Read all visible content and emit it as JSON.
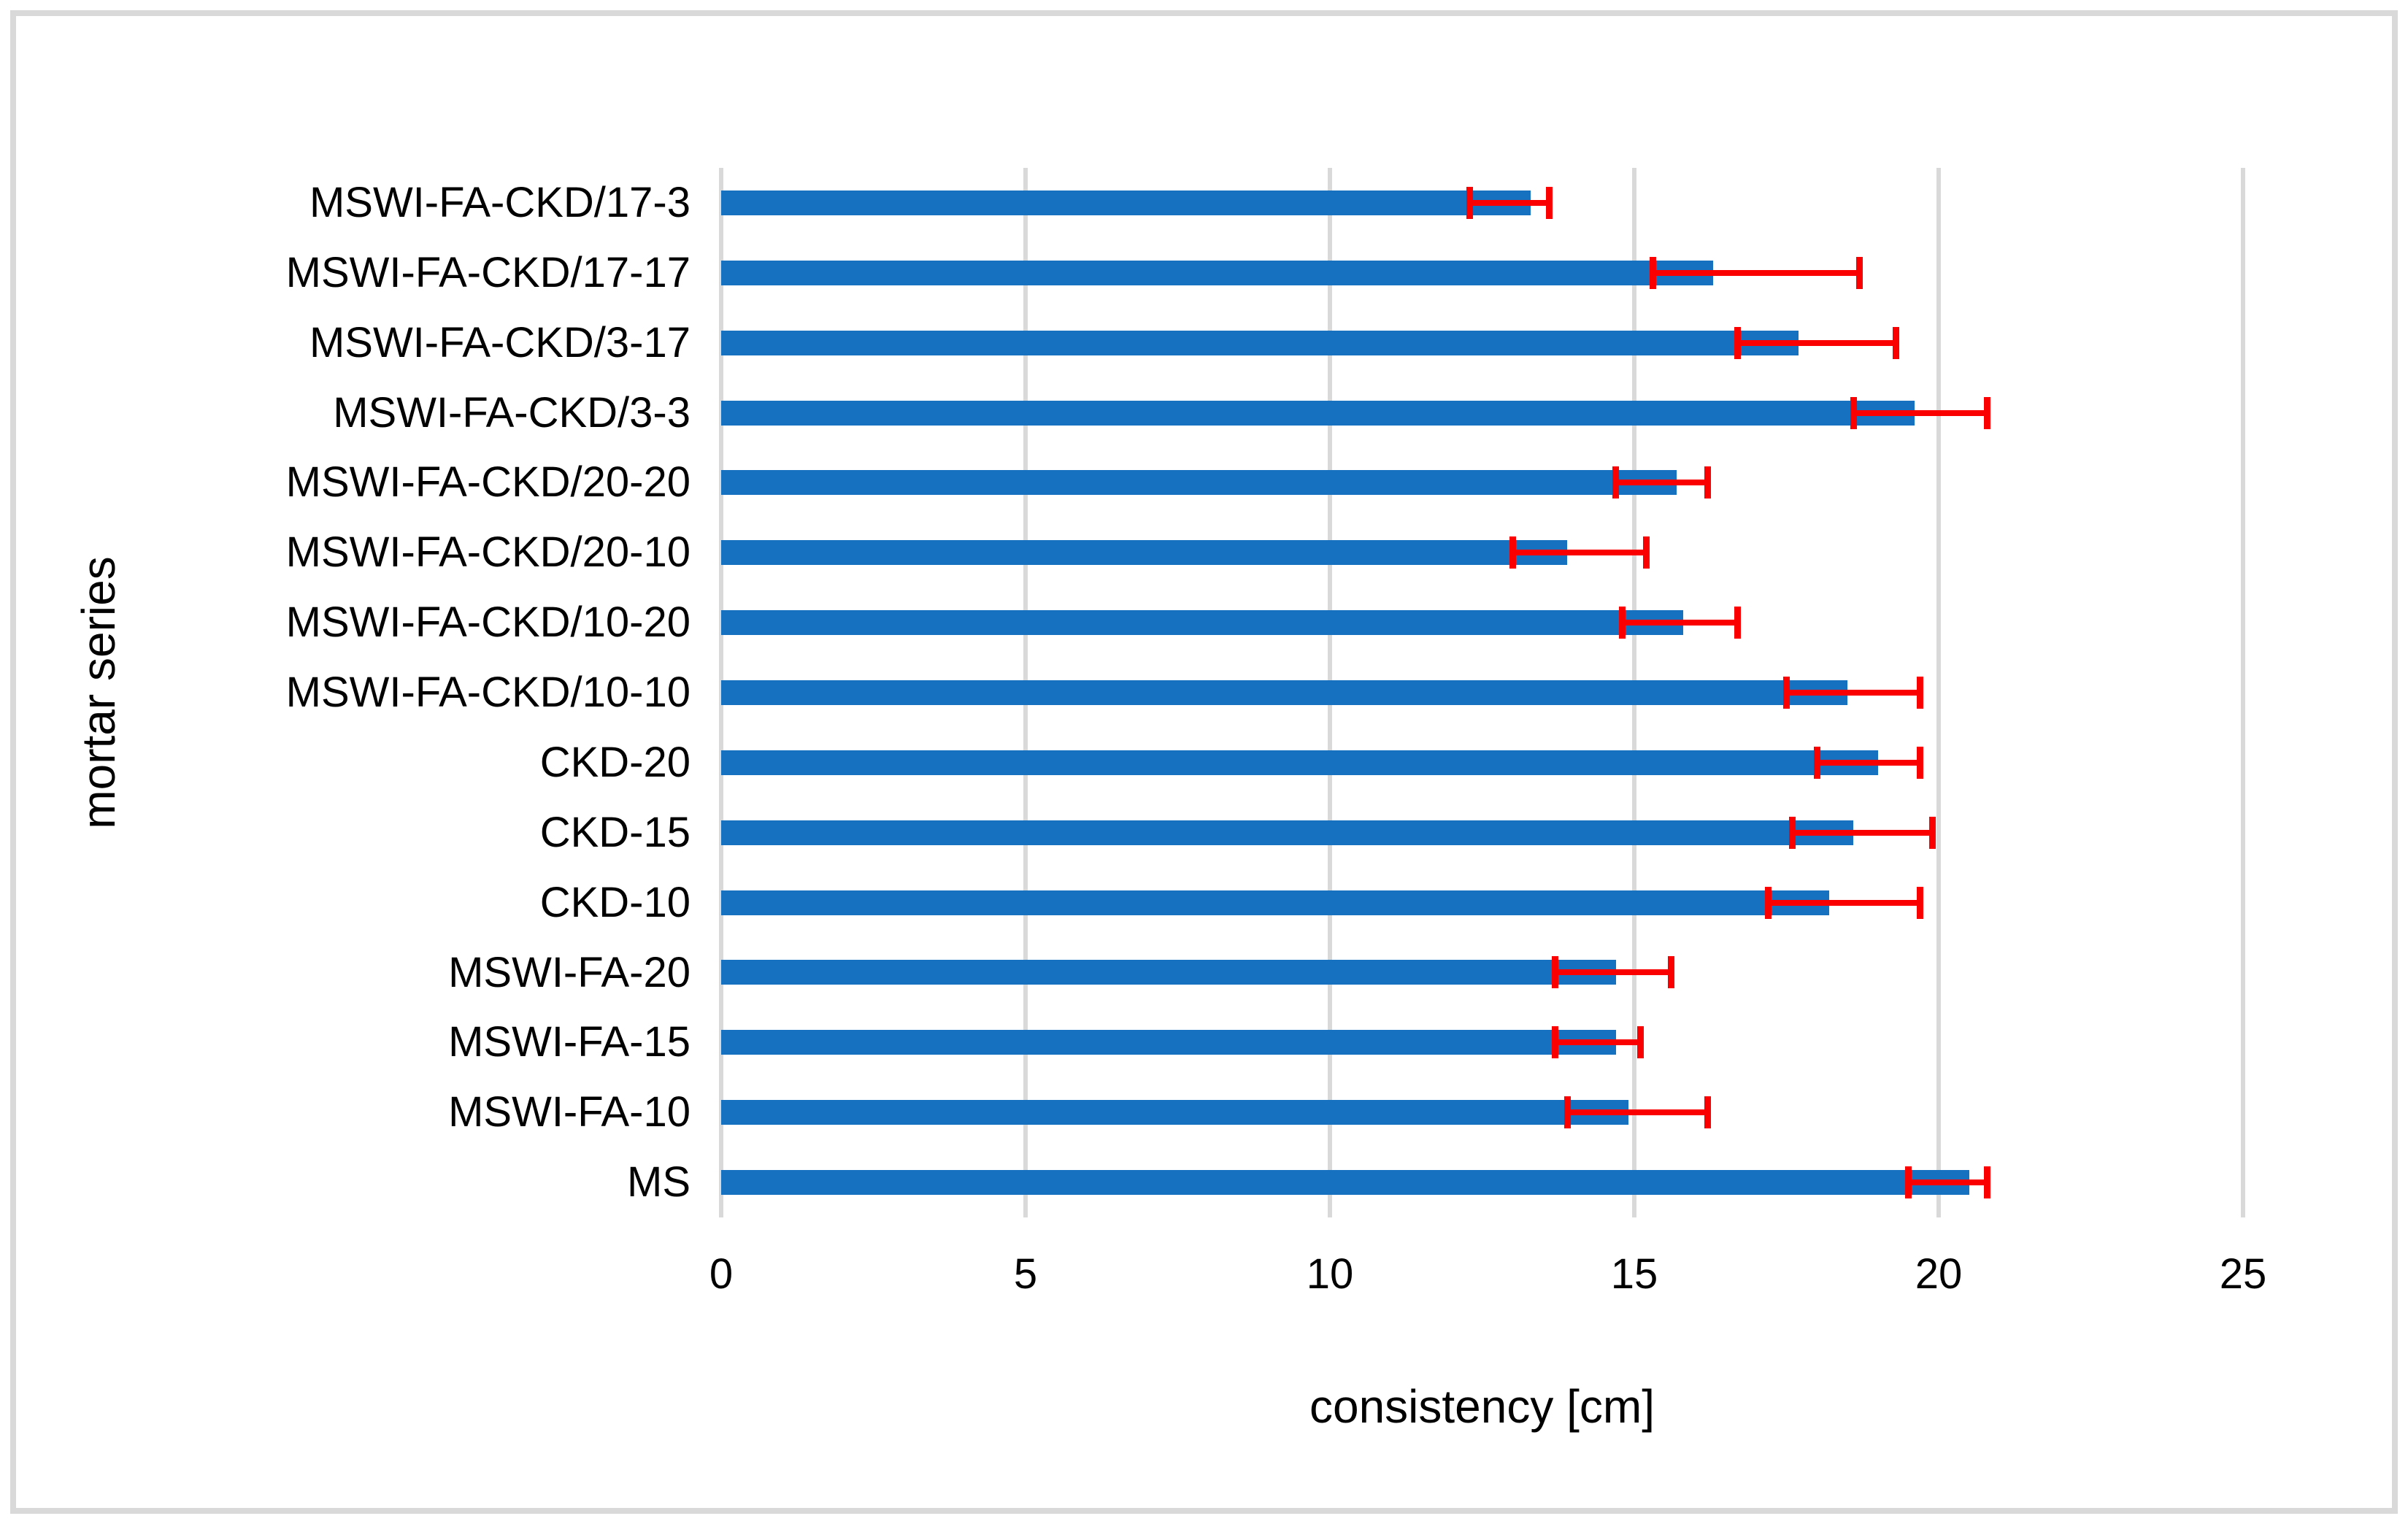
{
  "chart_data": {
    "type": "bar",
    "orientation": "horizontal",
    "title": "",
    "xlabel": "consistency [cm]",
    "ylabel": "mortar series",
    "xlim": [
      0,
      25
    ],
    "xticks": [
      0,
      5,
      10,
      15,
      20,
      25
    ],
    "grid": "vertical-only",
    "legend": "none",
    "categories": [
      "MSWI-FA-CKD/17-3",
      "MSWI-FA-CKD/17-17",
      "MSWI-FA-CKD/3-17",
      "MSWI-FA-CKD/3-3",
      "MSWI-FA-CKD/20-20",
      "MSWI-FA-CKD/20-10",
      "MSWI-FA-CKD/10-20",
      "MSWI-FA-CKD/10-10",
      "CKD-20",
      "CKD-15",
      "CKD-10",
      "MSWI-FA-20",
      "MSWI-FA-15",
      "MSWI-FA-10",
      "MS"
    ],
    "series": [
      {
        "name": "consistency",
        "values": [
          13.3,
          16.3,
          17.7,
          19.6,
          15.7,
          13.9,
          15.8,
          18.5,
          19.0,
          18.6,
          18.2,
          14.7,
          14.7,
          14.9,
          20.5
        ]
      }
    ],
    "error_bars": {
      "low": [
        12.3,
        15.3,
        16.7,
        18.6,
        14.7,
        13.0,
        14.8,
        17.5,
        18.0,
        17.6,
        17.2,
        13.7,
        13.7,
        13.9,
        19.5
      ],
      "high": [
        13.6,
        18.7,
        19.3,
        20.8,
        16.2,
        15.2,
        16.7,
        19.7,
        19.7,
        19.9,
        19.7,
        15.6,
        15.1,
        16.2,
        20.8
      ]
    },
    "colors": {
      "bar": "#1771c1",
      "error": "#fb0000",
      "gridline": "#d9d9d9",
      "frame_border": "#d9d9d9",
      "text": "#000000"
    }
  }
}
